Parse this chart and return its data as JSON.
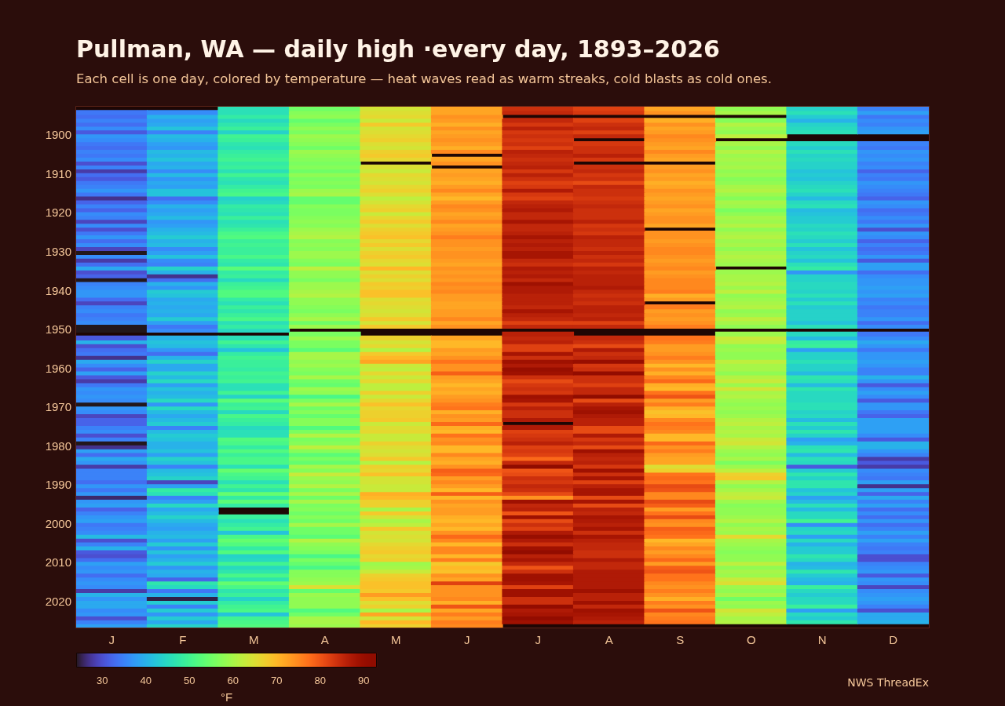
{
  "chart_data": {
    "type": "heatmap",
    "title": "Pullman, WA — daily high ·every day, 1893–2026",
    "subtitle": "Each cell is one day, colored by temperature — heat waves read as warm streaks, cold blasts as cold ones.",
    "categories": [
      "J",
      "F",
      "M",
      "A",
      "M",
      "J",
      "J",
      "A",
      "S",
      "O",
      "N",
      "D"
    ],
    "y_categories": [
      null,
      null,
      null,
      null,
      null,
      null,
      null,
      "1900",
      null,
      null,
      null,
      null,
      null,
      null,
      null,
      null,
      null,
      "1910",
      null,
      null,
      null,
      null,
      null,
      null,
      null,
      null,
      null,
      "1920",
      null,
      null,
      null,
      null,
      null,
      null,
      null,
      null,
      null,
      "1930",
      null,
      null,
      null,
      null,
      null,
      null,
      null,
      null,
      null,
      "1940",
      null,
      null,
      null,
      null,
      null,
      null,
      null,
      null,
      null,
      "1950",
      null,
      null,
      null,
      null,
      null,
      null,
      null,
      null,
      null,
      "1960",
      null,
      null,
      null,
      null,
      null,
      null,
      null,
      null,
      null,
      "1970",
      null,
      null,
      null,
      null,
      null,
      null,
      null,
      null,
      null,
      "1980",
      null,
      null,
      null,
      null,
      null,
      null,
      null,
      null,
      null,
      "1990",
      null,
      null,
      null,
      null,
      null,
      null,
      null,
      null,
      null,
      "2000",
      null,
      null,
      null,
      null,
      null,
      null,
      null,
      null,
      null,
      "2010",
      null,
      null,
      null,
      null,
      null,
      null,
      null,
      null,
      null,
      "2020",
      null,
      null,
      null,
      null,
      null,
      null
    ],
    "cells": [
      [
        null,
        null,
        46,
        55,
        64,
        72,
        84,
        82,
        72,
        58,
        44,
        35
      ],
      [
        34,
        36,
        46,
        57,
        65,
        72,
        85,
        83,
        74,
        60,
        46,
        38
      ],
      [
        33,
        40,
        48,
        58,
        66,
        74,
        null,
        null,
        null,
        null,
        43,
        34
      ],
      [
        35,
        38,
        45,
        54,
        63,
        73,
        85,
        82,
        71,
        57,
        40,
        36
      ],
      [
        33,
        39,
        47,
        56,
        68,
        71,
        83,
        84,
        74,
        61,
        44,
        35
      ],
      [
        36,
        42,
        49,
        58,
        64,
        74,
        86,
        85,
        72,
        59,
        45,
        37
      ],
      [
        31,
        35,
        44,
        56,
        65,
        72,
        83,
        82,
        73,
        58,
        46,
        38
      ],
      [
        37,
        41,
        50,
        59,
        66,
        73,
        84,
        85,
        75,
        62,
        null,
        null
      ],
      [
        36,
        40,
        49,
        58,
        67,
        74,
        83,
        null,
        74,
        null,
        null,
        null
      ],
      [
        34,
        38,
        47,
        57,
        65,
        73,
        84,
        83,
        73,
        60,
        45,
        35
      ],
      [
        33,
        37,
        46,
        55,
        64,
        71,
        82,
        84,
        72,
        58,
        43,
        34
      ],
      [
        35,
        41,
        48,
        59,
        67,
        75,
        86,
        84,
        75,
        61,
        46,
        37
      ],
      [
        34,
        40,
        49,
        58,
        68,
        null,
        85,
        86,
        73,
        59,
        44,
        36
      ],
      [
        36,
        42,
        50,
        57,
        66,
        72,
        84,
        83,
        72,
        60,
        45,
        37
      ],
      [
        30,
        39,
        48,
        56,
        null,
        74,
        85,
        null,
        null,
        59,
        44,
        35
      ],
      [
        35,
        40,
        49,
        57,
        65,
        null,
        86,
        84,
        73,
        60,
        44,
        36
      ],
      [
        28,
        36,
        46,
        55,
        63,
        72,
        83,
        85,
        74,
        58,
        42,
        32
      ],
      [
        33,
        41,
        50,
        58,
        66,
        73,
        86,
        83,
        72,
        59,
        43,
        35
      ],
      [
        31,
        37,
        47,
        56,
        65,
        72,
        84,
        84,
        73,
        57,
        42,
        34
      ],
      [
        34,
        39,
        46,
        57,
        64,
        71,
        82,
        81,
        71,
        58,
        44,
        37
      ],
      [
        35,
        38,
        48,
        56,
        66,
        73,
        83,
        85,
        72,
        60,
        45,
        36
      ],
      [
        37,
        42,
        50,
        59,
        67,
        75,
        87,
        84,
        74,
        61,
        46,
        35
      ],
      [
        34,
        42,
        51,
        60,
        65,
        72,
        83,
        84,
        73,
        59,
        44,
        34
      ],
      [
        27,
        33,
        44,
        54,
        62,
        70,
        82,
        83,
        72,
        57,
        41,
        32
      ],
      [
        32,
        36,
        45,
        54,
        64,
        73,
        85,
        84,
        73,
        60,
        45,
        37
      ],
      [
        35,
        40,
        48,
        57,
        66,
        75,
        86,
        85,
        74,
        59,
        46,
        36
      ],
      [
        32,
        38,
        47,
        56,
        67,
        74,
        87,
        84,
        72,
        56,
        41,
        33
      ],
      [
        36,
        39,
        46,
        56,
        63,
        72,
        85,
        84,
        73,
        58,
        42,
        34
      ],
      [
        35,
        41,
        49,
        57,
        66,
        73,
        85,
        84,
        74,
        60,
        43,
        36
      ],
      [
        29,
        37,
        46,
        58,
        68,
        75,
        88,
        86,
        74,
        59,
        43,
        34
      ],
      [
        36,
        38,
        47,
        57,
        65,
        72,
        85,
        83,
        72,
        61,
        45,
        37
      ],
      [
        30,
        40,
        49,
        59,
        67,
        73,
        85,
        84,
        null,
        58,
        44,
        30
      ],
      [
        34,
        41,
        51,
        60,
        68,
        74,
        86,
        83,
        74,
        60,
        46,
        37
      ],
      [
        37,
        43,
        52,
        61,
        69,
        76,
        88,
        86,
        74,
        61,
        45,
        36
      ],
      [
        33,
        40,
        49,
        57,
        66,
        74,
        86,
        85,
        73,
        59,
        43,
        32
      ],
      [
        36,
        41,
        50,
        58,
        68,
        74,
        87,
        85,
        74,
        60,
        46,
        35
      ],
      [
        29,
        36,
        49,
        57,
        65,
        73,
        86,
        84,
        75,
        58,
        42,
        33
      ],
      [
        24,
        38,
        49,
        59,
        67,
        74,
        88,
        86,
        75,
        60,
        44,
        34
      ],
      [
        36,
        42,
        51,
        59,
        68,
        74,
        88,
        84,
        74,
        61,
        45,
        37
      ],
      [
        28,
        36,
        48,
        57,
        66,
        73,
        85,
        85,
        73,
        60,
        42,
        31
      ],
      [
        33,
        35,
        47,
        56,
        65,
        72,
        84,
        83,
        74,
        59,
        46,
        38
      ],
      [
        39,
        44,
        53,
        62,
        70,
        74,
        87,
        86,
        75,
        null,
        48,
        38
      ],
      [
        30,
        40,
        48,
        58,
        65,
        73,
        86,
        85,
        73,
        59,
        37,
        33
      ],
      [
        32,
        27,
        49,
        58,
        67,
        74,
        87,
        86,
        74,
        60,
        44,
        36
      ],
      [
        24,
        33,
        45,
        56,
        65,
        73,
        85,
        86,
        75,
        60,
        44,
        37
      ],
      [
        35,
        40,
        49,
        59,
        68,
        75,
        89,
        86,
        75,
        61,
        45,
        37
      ],
      [
        36,
        37,
        50,
        59,
        67,
        74,
        87,
        87,
        75,
        59,
        45,
        38
      ],
      [
        37,
        43,
        52,
        60,
        69,
        75,
        87,
        85,
        76,
        62,
        44,
        37
      ],
      [
        37,
        42,
        52,
        61,
        69,
        73,
        86,
        84,
        71,
        58,
        46,
        38
      ],
      [
        33,
        39,
        48,
        58,
        65,
        73,
        86,
        85,
        73,
        59,
        43,
        35
      ],
      [
        29,
        40,
        46,
        58,
        66,
        72,
        86,
        84,
        null,
        60,
        46,
        36
      ],
      [
        35,
        39,
        49,
        57,
        65,
        72,
        85,
        86,
        76,
        61,
        43,
        34
      ],
      [
        36,
        40,
        47,
        56,
        64,
        73,
        88,
        86,
        73,
        58,
        44,
        35
      ],
      [
        34,
        39,
        49,
        58,
        65,
        73,
        86,
        85,
        74,
        59,
        44,
        35
      ],
      [
        35,
        43,
        51,
        60,
        68,
        75,
        85,
        86,
        73,
        62,
        44,
        37
      ],
      [
        36,
        38,
        46,
        55,
        64,
        72,
        82,
        82,
        74,
        60,
        42,
        33
      ],
      [
        24,
        34,
        48,
        59,
        68,
        74,
        85,
        85,
        76,
        58,
        46,
        36
      ],
      [
        24,
        36,
        45,
        null,
        null,
        null,
        null,
        null,
        null,
        null,
        null,
        null
      ],
      [
        null,
        null,
        null,
        56,
        null,
        null,
        86,
        null,
        null,
        59,
        45,
        34
      ],
      [
        31,
        40,
        46,
        59,
        67,
        72,
        85,
        85,
        77,
        63,
        41,
        36
      ],
      [
        40,
        42,
        50,
        56,
        64,
        70,
        86,
        84,
        76,
        62,
        48,
        39
      ],
      [
        30,
        41,
        47,
        56,
        66,
        70,
        82,
        81,
        73,
        58,
        49,
        37
      ],
      [
        33,
        37,
        42,
        53,
        61,
        73,
        82,
        87,
        73,
        59,
        38,
        34
      ],
      [
        34,
        33,
        48,
        60,
        68,
        72,
        88,
        84,
        74,
        58,
        44,
        37
      ],
      [
        27,
        40,
        50,
        60,
        70,
        74,
        84,
        85,
        76,
        58,
        44,
        37
      ],
      [
        39,
        44,
        49,
        58,
        72,
        77,
        89,
        90,
        74,
        62,
        46,
        38
      ],
      [
        36,
        39,
        49,
        59,
        63,
        74,
        87,
        83,
        70,
        60,
        44,
        37
      ],
      [
        32,
        39,
        48,
        57,
        62,
        74,
        90,
        84,
        74,
        60,
        44,
        35
      ],
      [
        38,
        44,
        50,
        56,
        66,
        79,
        89,
        91,
        71,
        58,
        41,
        35
      ],
      [
        31,
        41,
        49,
        60,
        63,
        73,
        84,
        84,
        75,
        61,
        47,
        40
      ],
      [
        28,
        45,
        50,
        55,
        66,
        72,
        81,
        84,
        78,
        63,
        46,
        37
      ],
      [
        34,
        38,
        46,
        54,
        62,
        70,
        83,
        82,
        71,
        59,
        41,
        31
      ],
      [
        37,
        42,
        46,
        59,
        62,
        72,
        84,
        85,
        70,
        64,
        47,
        36
      ],
      [
        36,
        40,
        50,
        58,
        67,
        71,
        83,
        85,
        77,
        60,
        45,
        38
      ],
      [
        37,
        41,
        44,
        51,
        63,
        73,
        89,
        92,
        80,
        61,
        45,
        36
      ],
      [
        36,
        45,
        53,
        56,
        66,
        74,
        88,
        81,
        73,
        59,
        45,
        31
      ],
      [
        24,
        37,
        49,
        60,
        69,
        76,
        83,
        86,
        76,
        58,
        46,
        37
      ],
      [
        37,
        45,
        50,
        55,
        66,
        77,
        86,
        88,
        71,
        59,
        46,
        37
      ],
      [
        36,
        41,
        45,
        57,
        67,
        71,
        84,
        89,
        69,
        58,
        44,
        34
      ],
      [
        29,
        39,
        51,
        54,
        67,
        74,
        84,
        87,
        70,
        59,
        45,
        32
      ],
      [
        32,
        41,
        49,
        57,
        68,
        73,
        87,
        86,
        75,
        61,
        41,
        38
      ],
      [
        32,
        43,
        48,
        57,
        63,
        78,
        null,
        86,
        77,
        62,
        46,
        38
      ],
      [
        35,
        35,
        45,
        52,
        65,
        71,
        87,
        81,
        76,
        60,
        43,
        38
      ],
      [
        36,
        41,
        46,
        56,
        66,
        70,
        82,
        81,
        75,
        61,
        47,
        38
      ],
      [
        30,
        43,
        46,
        61,
        63,
        77,
        83,
        87,
        70,
        60,
        44,
        36
      ],
      [
        35,
        42,
        52,
        56,
        63,
        74,
        84,
        83,
        70,
        63,
        38,
        31
      ],
      [
        24,
        40,
        51,
        57,
        67,
        75,
        86,
        85,
        78,
        64,
        40,
        40
      ],
      [
        27,
        40,
        48,
        62,
        65,
        70,
        82,
        81,
        74,
        61,
        46,
        40
      ],
      [
        38,
        42,
        52,
        57,
        64,
        70,
        83,
        89,
        76,
        59,
        47,
        37
      ],
      [
        33,
        38,
        49,
        53,
        65,
        75,
        82,
        86,
        73,
        58,
        41,
        35
      ],
      [
        39,
        44,
        51,
        56,
        68,
        72,
        78,
        85,
        72,
        60,
        46,
        28
      ],
      [
        37,
        42,
        51,
        54,
        61,
        71,
        85,
        86,
        72,
        56,
        45,
        31
      ],
      [
        28,
        35,
        46,
        60,
        67,
        74,
        92,
        83,
        65,
        59,
        31,
        28
      ],
      [
        35,
        41,
        54,
        57,
        66,
        79,
        80,
        89,
        67,
        62,
        43,
        36
      ],
      [
        35,
        42,
        51,
        63,
        69,
        78,
        81,
        84,
        77,
        67,
        47,
        35
      ],
      [
        35,
        44,
        50,
        59,
        64,
        73,
        84,
        88,
        78,
        68,
        44,
        34
      ],
      [
        33,
        29,
        46,
        58,
        64,
        75,
        83,
        82,
        77,
        61,
        47,
        38
      ],
      [
        37,
        38,
        50,
        61,
        63,
        73,
        85,
        86,
        81,
        58,
        47,
        27
      ],
      [
        34,
        48,
        47,
        56,
        63,
        70,
        84,
        88,
        80,
        60,
        42,
        38
      ],
      [
        37,
        46,
        54,
        60,
        71,
        79,
        81,
        88,
        75,
        62,
        44,
        32
      ],
      [
        26,
        35,
        48,
        55,
        70,
        70,
        74,
        81,
        75,
        63,
        38,
        39
      ],
      [
        37,
        38,
        53,
        60,
        67,
        74,
        89,
        88,
        81,
        59,
        41,
        35
      ],
      [
        38,
        45,
        48,
        56,
        67,
        72,
        85,
        81,
        79,
        57,
        46,
        38
      ],
      [
        32,
        39,
        null,
        57,
        60,
        73,
        86,
        86,
        73,
        58,
        41,
        33
      ],
      [
        35,
        41,
        null,
        55,
        68,
        73,
        80,
        85,
        77,
        58,
        45,
        36
      ],
      [
        37,
        44,
        49,
        57,
        64,
        71,
        89,
        88,
        81,
        59,
        45,
        33
      ],
      [
        38,
        41,
        46,
        55,
        60,
        70,
        81,
        87,
        75,
        61,
        50,
        37
      ],
      [
        34,
        39,
        48,
        60,
        62,
        72,
        84,
        86,
        74,
        58,
        36,
        33
      ],
      [
        35,
        38,
        50,
        55,
        68,
        70,
        82,
        88,
        79,
        60,
        44,
        35
      ],
      [
        36,
        40,
        42,
        55,
        64,
        74,
        87,
        84,
        78,
        59,
        45,
        38
      ],
      [
        41,
        41,
        51,
        53,
        65,
        78,
        90,
        88,
        77,
        66,
        38,
        35
      ],
      [
        30,
        38,
        54,
        61,
        64,
        75,
        87,
        86,
        70,
        60,
        45,
        38
      ],
      [
        35,
        43,
        52,
        58,
        66,
        70,
        84,
        85,
        72,
        59,
        40,
        35
      ],
      [
        40,
        37,
        48,
        57,
        67,
        75,
        89,
        85,
        75,
        58,
        43,
        34
      ],
      [
        31,
        42,
        52,
        56,
        68,
        75,
        91,
        84,
        73,
        57,
        43,
        35
      ],
      [
        30,
        38,
        44,
        51,
        66,
        70,
        86,
        84,
        75,
        58,
        47,
        30
      ],
      [
        33,
        40,
        45,
        56,
        67,
        76,
        88,
        87,
        78,
        58,
        45,
        30
      ],
      [
        38,
        43,
        50,
        54,
        59,
        68,
        85,
        85,
        73,
        62,
        40,
        35
      ],
      [
        36,
        37,
        45,
        51,
        60,
        70,
        80,
        85,
        79,
        58,
        41,
        36
      ],
      [
        37,
        40,
        47,
        57,
        63,
        69,
        84,
        87,
        80,
        60,
        47,
        37
      ],
      [
        33,
        39,
        51,
        57,
        67,
        74,
        89,
        87,
        77,
        59,
        43,
        31
      ],
      [
        36,
        32,
        47,
        58,
        68,
        72,
        89,
        87,
        77,
        63,
        41,
        37
      ],
      [
        37,
        47,
        54,
        59,
        69,
        82,
        88,
        87,
        75,
        65,
        40,
        36
      ],
      [
        36,
        45,
        51,
        65,
        69,
        74,
        82,
        87,
        74,
        59,
        49,
        29
      ],
      [
        28,
        34,
        47,
        54,
        68,
        74,
        89,
        89,
        76,
        58,
        45,
        36
      ],
      [
        40,
        40,
        49,
        59,
        73,
        74,
        89,
        86,
        74,
        60,
        43,
        37
      ],
      [
        37,
        25,
        44,
        58,
        69,
        75,
        84,
        86,
        71,
        55,
        45,
        38
      ],
      [
        39,
        43,
        48,
        58,
        65,
        71,
        84,
        89,
        76,
        59,
        45,
        37
      ],
      [
        39,
        35,
        50,
        58,
        67,
        80,
        91,
        85,
        74,
        58,
        49,
        35
      ],
      [
        36,
        43,
        51,
        52,
        60,
        72,
        87,
        89,
        80,
        64,
        38,
        30
      ],
      [
        37,
        37,
        42,
        55,
        72,
        76,
        88,
        88,
        75,
        62,
        45,
        39
      ],
      [
        30,
        43,
        50,
        60,
        64,
        73,
        91,
        87,
        76,
        60,
        43,
        39
      ],
      [
        35,
        39,
        51,
        60,
        70,
        76,
        89,
        86,
        77,
        61,
        47,
        40
      ],
      [
        38,
        44,
        52,
        59,
        67,
        75,
        null,
        null,
        null,
        null,
        null,
        null
      ]
    ],
    "clim": [
      24,
      93
    ],
    "cticks": [
      30,
      40,
      50,
      60,
      70,
      80,
      90
    ],
    "clabel": "°F",
    "annotations": [
      "NWS ThreadEx"
    ]
  }
}
